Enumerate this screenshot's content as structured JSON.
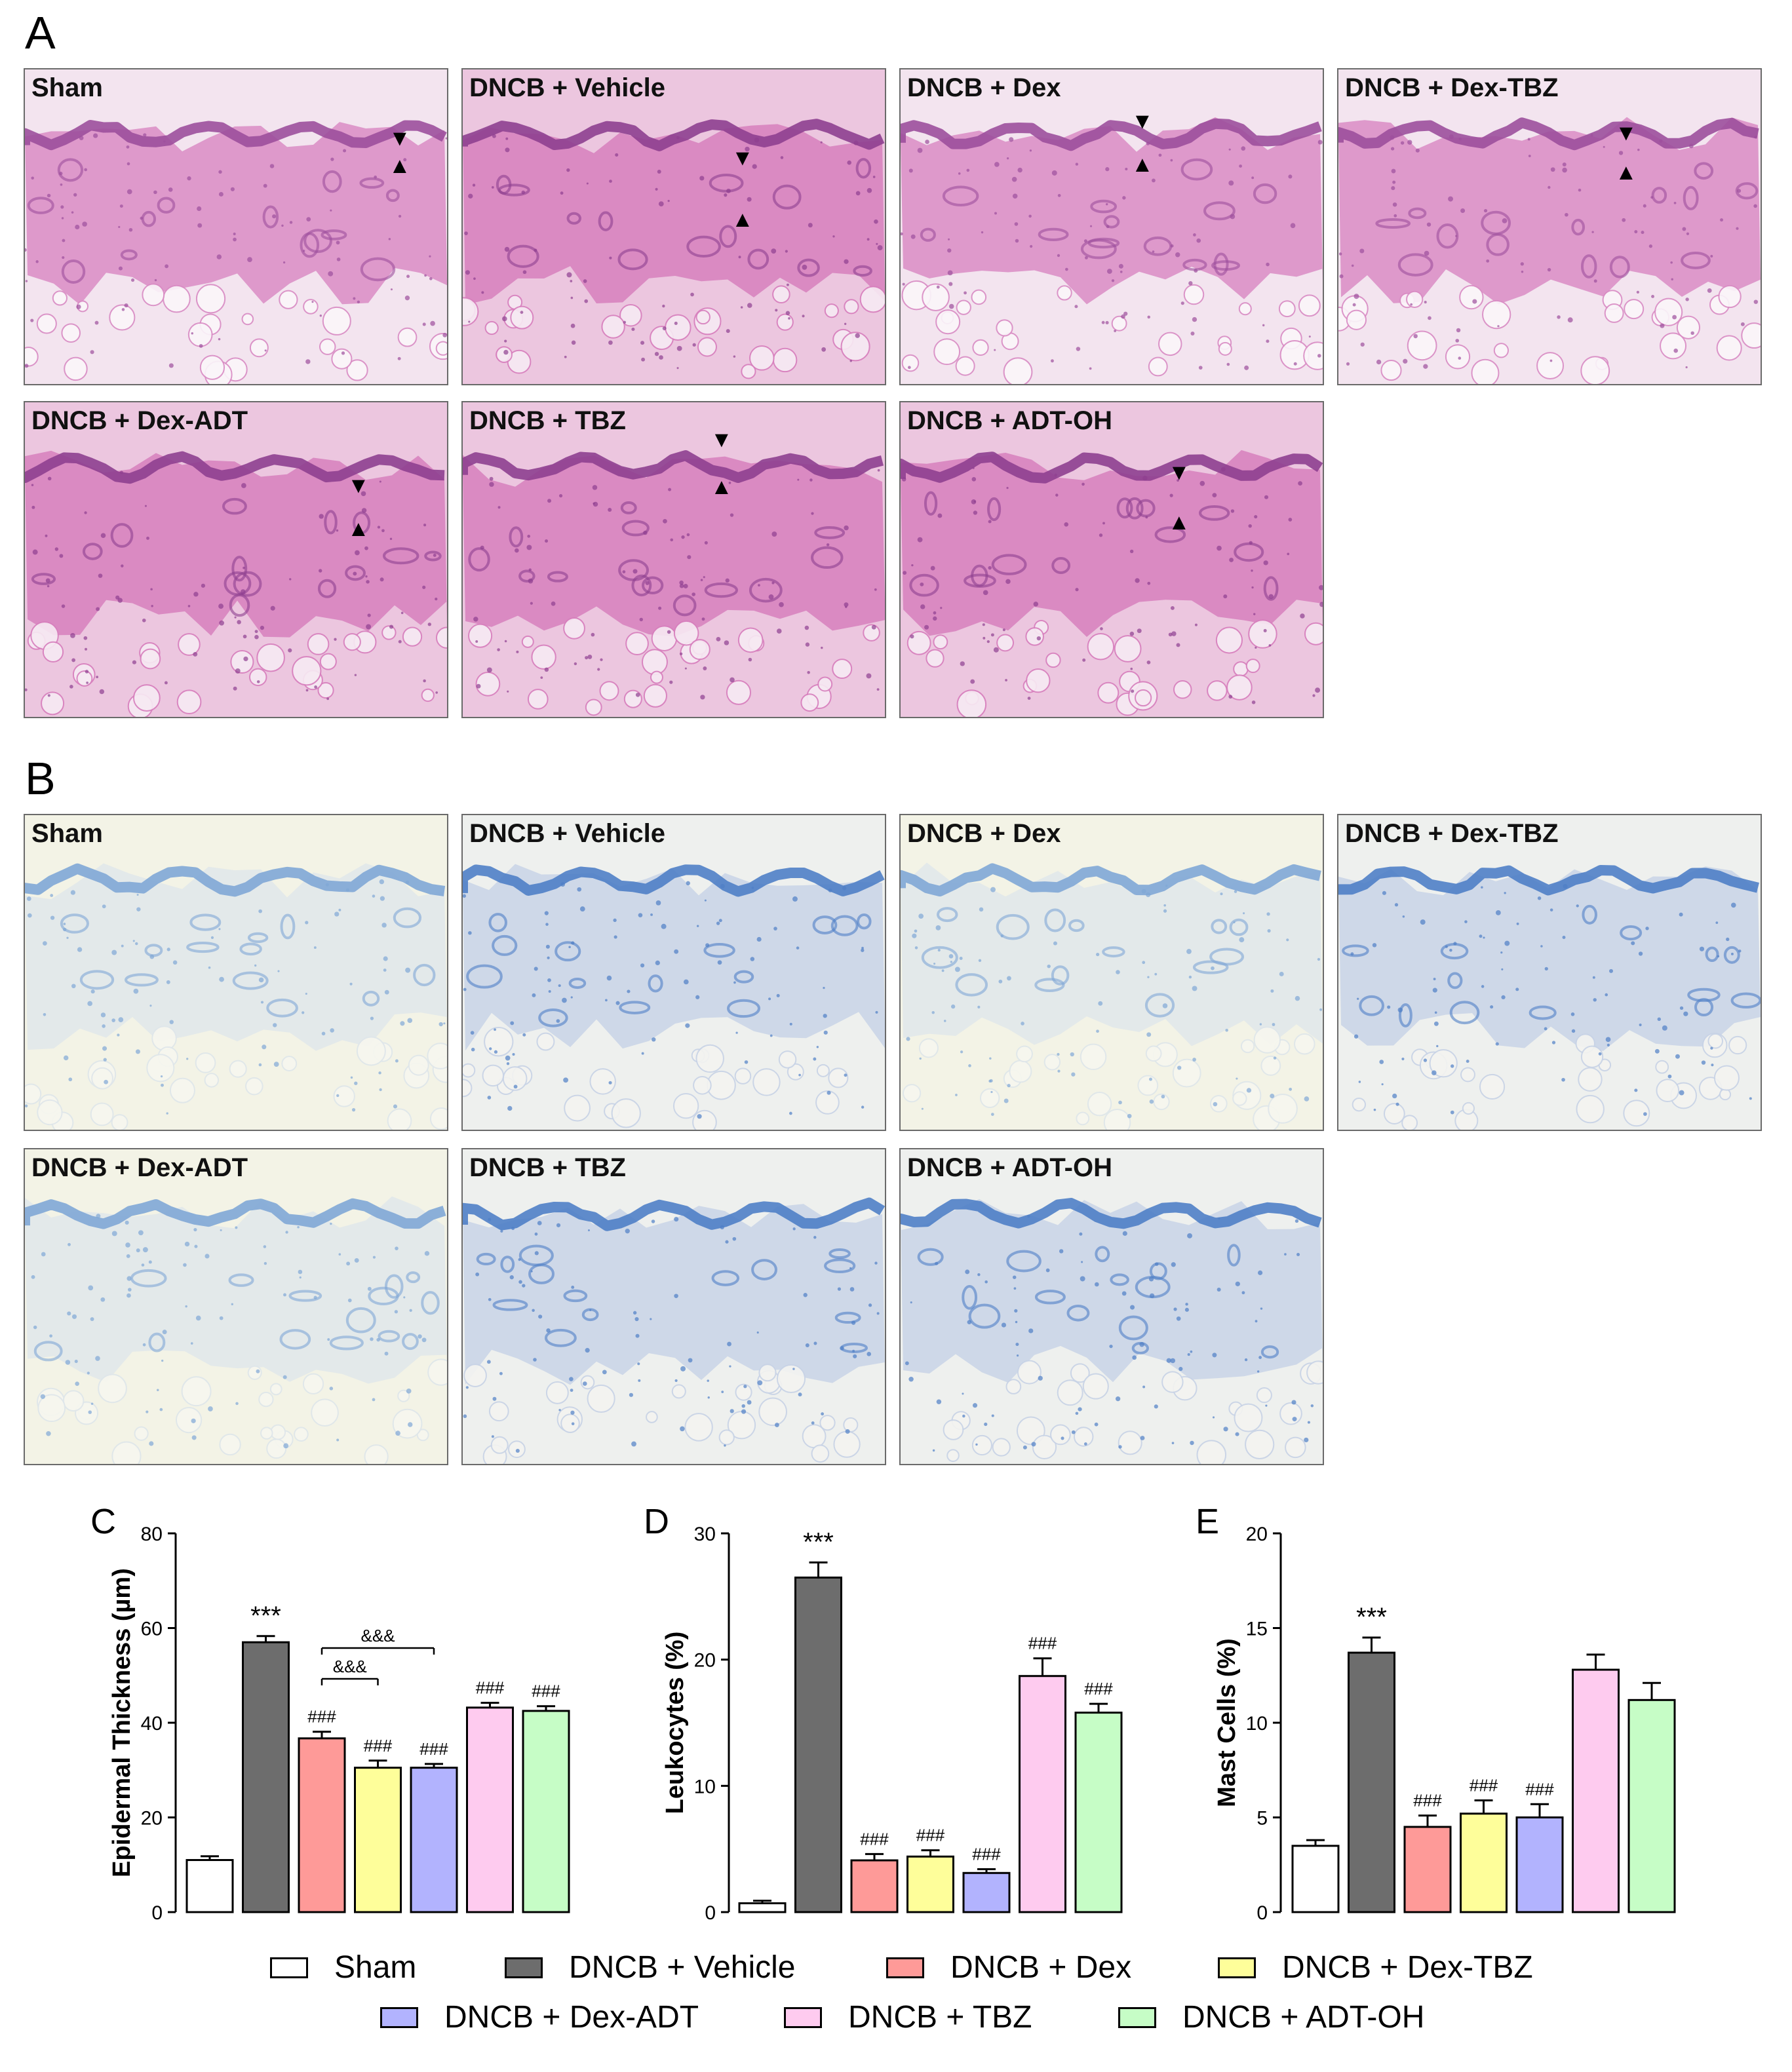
{
  "panels": {
    "a": "A",
    "b": "B"
  },
  "he_tiles": [
    {
      "label": "Sham",
      "tone": "he_a"
    },
    {
      "label": "DNCB + Vehicle",
      "tone": "he_b"
    },
    {
      "label": "DNCB + Dex",
      "tone": "he_a"
    },
    {
      "label": "DNCB + Dex-TBZ",
      "tone": "he_a"
    },
    {
      "label": "DNCB + Dex-ADT",
      "tone": "he_b"
    },
    {
      "label": "DNCB + TBZ",
      "tone": "he_b"
    },
    {
      "label": "DNCB + ADT-OH",
      "tone": "he_b"
    }
  ],
  "tb_tiles": [
    {
      "label": "Sham",
      "tone": "tb_light"
    },
    {
      "label": "DNCB + Vehicle",
      "tone": "tb_dark"
    },
    {
      "label": "DNCB + Dex",
      "tone": "tb_light"
    },
    {
      "label": "DNCB + Dex-TBZ",
      "tone": "tb_dark"
    },
    {
      "label": "DNCB + Dex-ADT",
      "tone": "tb_light"
    },
    {
      "label": "DNCB + TBZ",
      "tone": "tb_dark"
    },
    {
      "label": "DNCB + ADT-OH",
      "tone": "tb_dark"
    }
  ],
  "marker_glyphs": {
    "down": "▼",
    "up": "▲"
  },
  "tones": {
    "he_a": {
      "bg": "#f3e4ef",
      "tissue": "#d98cc4",
      "epi": "#9c4f9c",
      "white": "#fbf6fa"
    },
    "he_b": {
      "bg": "#ecc6df",
      "tissue": "#d77fbd",
      "epi": "#8e3f90",
      "white": "#f7eaf3"
    },
    "tb_light": {
      "bg": "#f3f3e6",
      "tissue": "#dfe6ea",
      "epi": "#7fa7d6",
      "white": "#f7f7ef"
    },
    "tb_dark": {
      "bg": "#eef0ee",
      "tissue": "#c8d3e6",
      "epi": "#4f7fc6",
      "white": "#f4f4f1"
    }
  },
  "groups": [
    {
      "name": "Sham",
      "color": "#ffffff"
    },
    {
      "name": "DNCB + Vehicle",
      "color": "#6d6d6d"
    },
    {
      "name": "DNCB + Dex",
      "color": "#fe9a98"
    },
    {
      "name": "DNCB + Dex-TBZ",
      "color": "#fefe9a"
    },
    {
      "name": "DNCB + Dex-ADT",
      "color": "#b2b3fe"
    },
    {
      "name": "DNCB + TBZ",
      "color": "#fecbef"
    },
    {
      "name": "DNCB + ADT-OH",
      "color": "#c6fdc6"
    }
  ],
  "chart_data": [
    {
      "type": "bar",
      "panel": "C",
      "ylabel": "Epidermal Thickness (µm)",
      "ylim": [
        0,
        80
      ],
      "yticks": [
        "0",
        "20",
        "40",
        "60",
        "80"
      ],
      "categories": [
        "Sham",
        "DNCB + Vehicle",
        "DNCB + Dex",
        "DNCB + Dex-TBZ",
        "DNCB + Dex-ADT",
        "DNCB + TBZ",
        "DNCB + ADT-OH"
      ],
      "values": [
        11,
        57,
        36.7,
        30.5,
        30.5,
        43.2,
        42.5
      ],
      "errors": [
        0.8,
        1.3,
        1.4,
        1.5,
        0.8,
        1.0,
        1.0
      ],
      "annotations": [
        "",
        "***",
        "###",
        "###",
        "###",
        "###",
        "###"
      ],
      "brackets": [
        {
          "from": 2,
          "to": 3,
          "label": "&&&"
        },
        {
          "from": 2,
          "to": 4,
          "label": "&&&"
        }
      ]
    },
    {
      "type": "bar",
      "panel": "D",
      "ylabel": "Leukocytes (%)",
      "ylim": [
        0,
        30
      ],
      "yticks": [
        "0",
        "10",
        "20",
        "30"
      ],
      "categories": [
        "Sham",
        "DNCB + Vehicle",
        "DNCB + Dex",
        "DNCB + Dex-TBZ",
        "DNCB + Dex-ADT",
        "DNCB + TBZ",
        "DNCB + ADT-OH"
      ],
      "values": [
        0.7,
        26.5,
        4.1,
        4.4,
        3.1,
        18.7,
        15.8
      ],
      "errors": [
        0.2,
        1.2,
        0.5,
        0.5,
        0.3,
        1.4,
        0.7
      ],
      "annotations": [
        "",
        "***",
        "###",
        "###",
        "###",
        "###",
        "###"
      ],
      "brackets": []
    },
    {
      "type": "bar",
      "panel": "E",
      "ylabel": "Mast Cells (%)",
      "ylim": [
        0,
        20
      ],
      "yticks": [
        "0",
        "5",
        "10",
        "15",
        "20"
      ],
      "categories": [
        "Sham",
        "DNCB + Vehicle",
        "DNCB + Dex",
        "DNCB + Dex-TBZ",
        "DNCB + Dex-ADT",
        "DNCB + TBZ",
        "DNCB + ADT-OH"
      ],
      "values": [
        3.5,
        13.7,
        4.5,
        5.2,
        5.0,
        12.8,
        11.2
      ],
      "errors": [
        0.3,
        0.8,
        0.6,
        0.7,
        0.7,
        0.8,
        0.9
      ],
      "annotations": [
        "",
        "***",
        "###",
        "###",
        "###",
        "",
        ""
      ],
      "brackets": []
    }
  ]
}
